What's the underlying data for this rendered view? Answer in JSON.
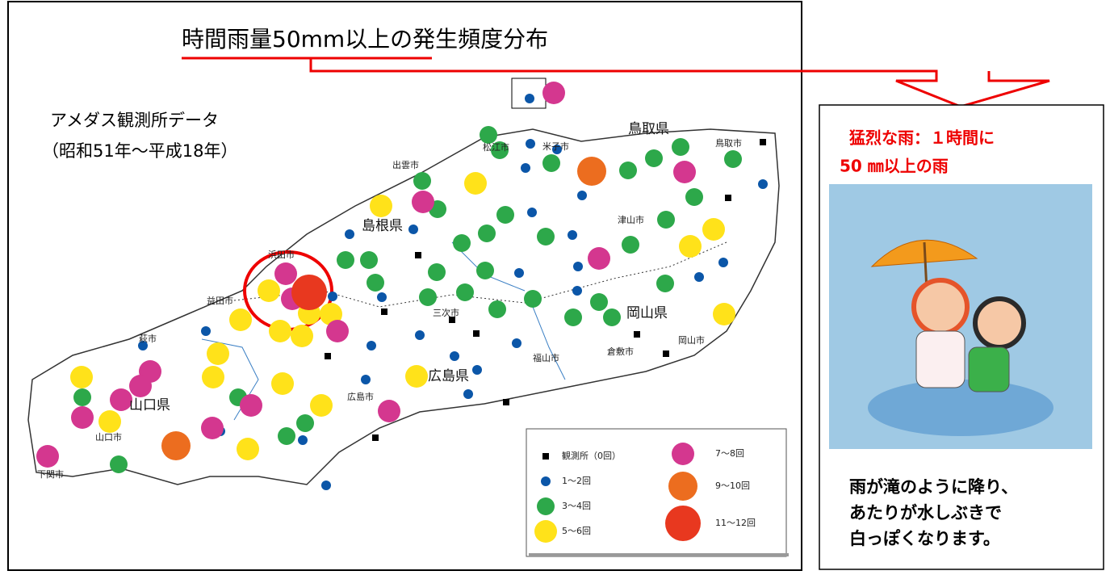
{
  "header": {
    "title": "時間雨量50mm以上の発生頻度分布"
  },
  "map": {
    "source": "アメダス観測所データ",
    "period": "（昭和51年～平成18年）",
    "prefectures": [
      "鳥取県",
      "島根県",
      "岡山県",
      "広島県",
      "山口県"
    ],
    "cities": [
      "出雲市",
      "松江市",
      "米子市",
      "鳥取市",
      "津山市",
      "浜田市",
      "益田市",
      "萩市",
      "山口市",
      "下関市",
      "三次市",
      "広島市",
      "福山市",
      "倉敷市",
      "岡山市"
    ],
    "legend": [
      "観測所（0回）",
      "1～2回",
      "3～4回",
      "5～6回",
      "7～8回",
      "9～10回",
      "11～12回"
    ]
  },
  "panel": {
    "heading": [
      "猛烈な雨：１時間に",
      "50 ㎜以上の雨"
    ],
    "description": [
      "雨が滝のように降り、",
      "あたりが水しぶきで",
      "白っぽくなります。"
    ]
  }
}
